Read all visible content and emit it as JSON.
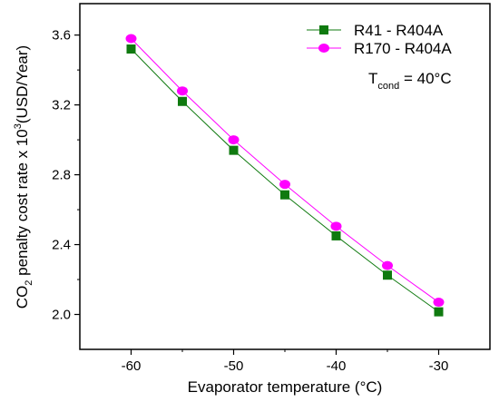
{
  "chart_data": {
    "type": "line",
    "xlabel": "Evaporator temperature (°C)",
    "ylabel": {
      "prefix": "CO",
      "sub": "2",
      "middle": " penalty cost rate x 10",
      "sup": "3",
      "suffix": "(USD/Year)"
    },
    "xlim": [
      -65,
      -25
    ],
    "ylim": [
      1.8,
      3.78
    ],
    "xticks": [
      -60,
      -50,
      -40,
      -30
    ],
    "xtick_labels": [
      "-60",
      "-50",
      "-40",
      "-30"
    ],
    "xminor_ticks": [
      -55,
      -45,
      -35
    ],
    "yticks": [
      2.0,
      2.4,
      2.8,
      3.2,
      3.6
    ],
    "ytick_labels": [
      "2.0",
      "2.4",
      "2.8",
      "3.2",
      "3.6"
    ],
    "yminor_ticks": [
      2.2,
      2.6,
      3.0,
      3.4
    ],
    "grid": false,
    "legend_position": "top-right",
    "x": [
      -60,
      -55,
      -50,
      -45,
      -40,
      -35,
      -30
    ],
    "series": [
      {
        "name": "R41 - R404A",
        "color": "#0f7a0f",
        "marker": "square",
        "values": [
          3.52,
          3.22,
          2.94,
          2.685,
          2.45,
          2.225,
          2.015
        ]
      },
      {
        "name": "R170 - R404A",
        "color": "#ff00ff",
        "marker": "circle",
        "values": [
          3.58,
          3.28,
          3.0,
          2.745,
          2.505,
          2.28,
          2.07
        ]
      }
    ],
    "annotation": {
      "main": "T",
      "sub": "cond",
      "suffix": " = 40°C"
    }
  }
}
